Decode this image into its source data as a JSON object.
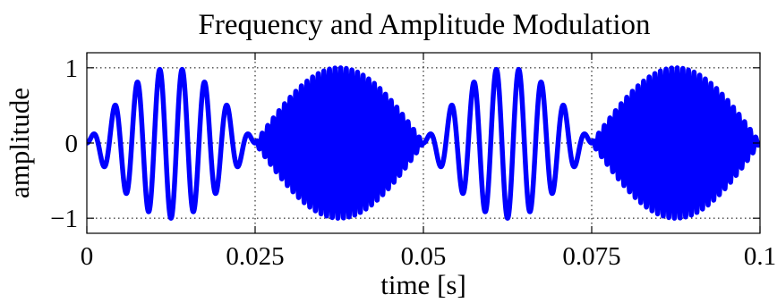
{
  "chart_data": {
    "type": "line",
    "title": "Frequency and Amplitude Modulation",
    "xlabel": "time [s]",
    "ylabel": "amplitude",
    "xlim": [
      0,
      0.1
    ],
    "ylim": [
      -1.2,
      1.2
    ],
    "x_ticks": [
      0,
      0.025,
      0.05,
      0.075,
      0.1
    ],
    "x_tick_labels": [
      "0",
      "0.025",
      "0.05",
      "0.075",
      "0.1"
    ],
    "y_ticks": [
      -1,
      0,
      1
    ],
    "y_tick_labels": [
      "−1",
      "0",
      "1"
    ],
    "grid": true,
    "grid_style": "dotted",
    "series": [
      {
        "color": "#0000ff",
        "envelope": "sin(pi*t/0.025)",
        "segments": [
          {
            "t_start": 0,
            "t_end": 0.025,
            "frequency_hz": 300
          },
          {
            "t_start": 0.025,
            "t_end": 0.05,
            "frequency_hz": 1200
          },
          {
            "t_start": 0.05,
            "t_end": 0.075,
            "frequency_hz": 300
          },
          {
            "t_start": 0.075,
            "t_end": 0.1,
            "frequency_hz": 1200
          }
        ]
      }
    ]
  }
}
